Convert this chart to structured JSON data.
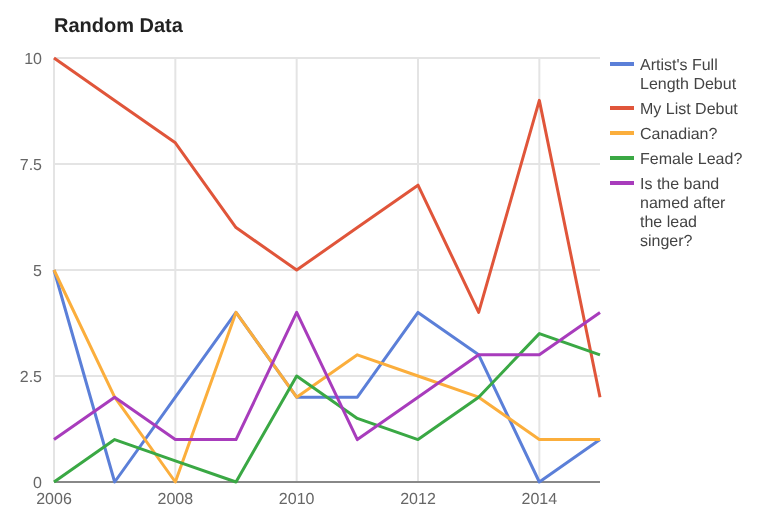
{
  "chart_data": {
    "type": "line",
    "title": "Random Data",
    "x": [
      2006,
      2007,
      2008,
      2009,
      2010,
      2011,
      2012,
      2013,
      2014,
      2015
    ],
    "series": [
      {
        "name": "Artist's Full Length Debut",
        "color": "#5b7fd8",
        "values": [
          5,
          0,
          2,
          4,
          2,
          2,
          4,
          3,
          0,
          1
        ]
      },
      {
        "name": "My List Debut",
        "color": "#e0553a",
        "values": [
          10,
          9,
          8,
          6,
          5,
          6,
          7,
          4,
          9,
          2
        ]
      },
      {
        "name": "Canadian?",
        "color": "#fbae3c",
        "values": [
          5,
          2,
          0,
          4,
          2,
          3,
          2.5,
          2,
          1,
          1
        ]
      },
      {
        "name": "Female Lead?",
        "color": "#3aa844",
        "values": [
          0,
          1,
          0.5,
          0,
          2.5,
          1.5,
          1,
          2,
          3.5,
          3
        ]
      },
      {
        "name": "Is the band named after the lead singer?",
        "color": "#a83cbc",
        "values": [
          1,
          2,
          1,
          1,
          4,
          1,
          2,
          3,
          3,
          4
        ]
      }
    ],
    "xlim": [
      2006,
      2015
    ],
    "xticks": [
      2006,
      2008,
      2010,
      2012,
      2014
    ],
    "ylim": [
      0,
      10
    ],
    "yticks": [
      0,
      2.5,
      5,
      7.5,
      10
    ],
    "grid": true,
    "legend": "right",
    "marker": "none",
    "line_style": "solid"
  }
}
